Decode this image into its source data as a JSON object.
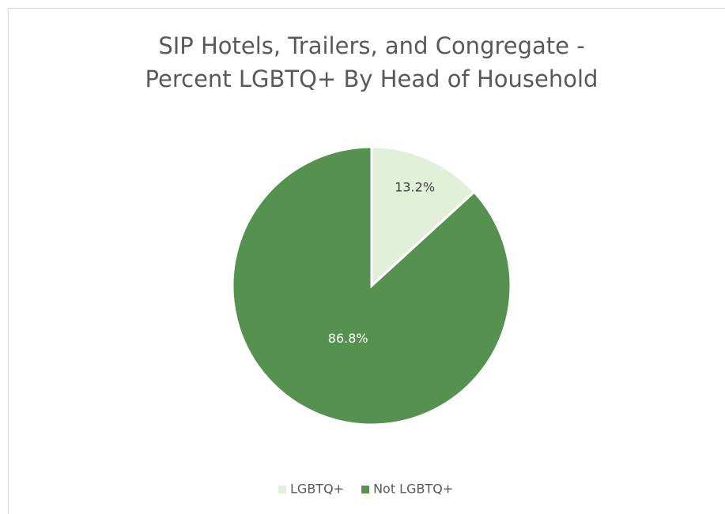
{
  "chart_data": {
    "type": "pie",
    "title": [
      "SIP Hotels, Trailers, and Congregate -",
      "Percent LGBTQ+ By Head of Household"
    ],
    "categories": [
      "LGBTQ+",
      "Not LGBTQ+"
    ],
    "values": [
      13.2,
      86.8
    ],
    "value_labels": [
      "13.2%",
      "86.8%"
    ],
    "colors": [
      "#e2efd9",
      "#55924f"
    ],
    "label_colors": [
      "#404040",
      "#ffffff"
    ],
    "legend": "bottom"
  }
}
